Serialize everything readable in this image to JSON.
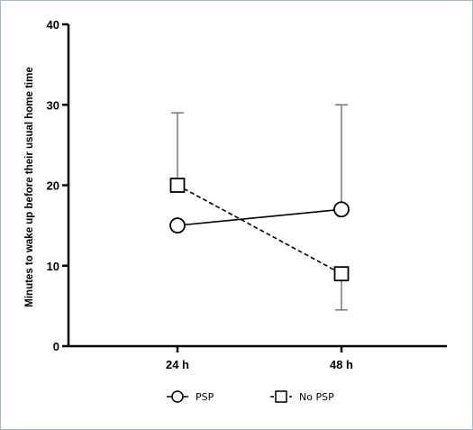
{
  "chart_data": {
    "type": "line",
    "categories": [
      "24 h",
      "48 h"
    ],
    "ylabel": "Minutes to wake up before their usual home time",
    "xlabel": "",
    "title": "",
    "ylim": [
      0,
      40
    ],
    "yticks": [
      0,
      10,
      20,
      30,
      40
    ],
    "grid": false,
    "legend_position": "bottom",
    "series": [
      {
        "name": "PSP",
        "marker": "circle",
        "line_style": "solid",
        "values": [
          15,
          17
        ],
        "error_upper": [
          null,
          30
        ],
        "error_lower": [
          null,
          null
        ]
      },
      {
        "name": "No PSP",
        "marker": "square",
        "line_style": "dashed",
        "values": [
          20,
          9
        ],
        "error_upper": [
          29,
          null
        ],
        "error_lower": [
          null,
          4.5
        ]
      }
    ],
    "colors": {
      "line": "#000000",
      "errorbar": "#6e6e6e",
      "frame": "#a9b7c6"
    }
  }
}
